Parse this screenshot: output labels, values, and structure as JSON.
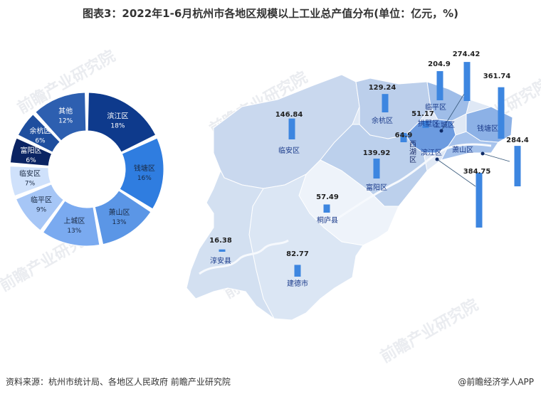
{
  "title": "图表3：2022年1-6月杭州市各地区规模以上工业总产值分布(单位：亿元，%)",
  "source": "资料来源：杭州市统计局、各地区人民政府 前瞻产业研究院",
  "brand": "@前瞻经济学人APP",
  "watermark": "前瞻产业研究院",
  "chart_data": [
    {
      "type": "pie",
      "style": "donut",
      "categories": [
        "滨江区",
        "钱塘区",
        "萧山区",
        "上城区",
        "临平区",
        "临安区",
        "富阳区",
        "余杭区",
        "其他"
      ],
      "values": [
        18,
        16,
        13,
        13,
        9,
        7,
        6,
        6,
        12
      ],
      "value_labels": [
        "18%",
        "16%",
        "13%",
        "13%",
        "9%",
        "7%",
        "6%",
        "6%",
        "12%"
      ],
      "colors": [
        "#0e3a8c",
        "#2f7de0",
        "#5b96e6",
        "#7aaaf0",
        "#a6c6f6",
        "#cfe1fb",
        "#0b2463",
        "#1e4e9e",
        "#2d5fb0"
      ]
    },
    {
      "type": "bar",
      "style": "map-bars",
      "categories": [
        "临安区",
        "余杭区",
        "临平区",
        "拱墅区",
        "上城区",
        "西湖区",
        "滨江区",
        "钱塘区",
        "萧山区",
        "富阳区",
        "桐庐县",
        "淳安县",
        "建德市"
      ],
      "values": [
        146.84,
        129.24,
        204.9,
        51.17,
        274.42,
        64.9,
        384.75,
        361.74,
        284.4,
        139.92,
        57.49,
        16.38,
        82.77
      ],
      "value_labels": [
        "146.84",
        "129.24",
        "204.9",
        "51.17",
        "274.42",
        "64.9",
        "384.75",
        "361.74",
        "284.4",
        "139.92",
        "57.49",
        "16.38",
        "82.77"
      ]
    }
  ]
}
